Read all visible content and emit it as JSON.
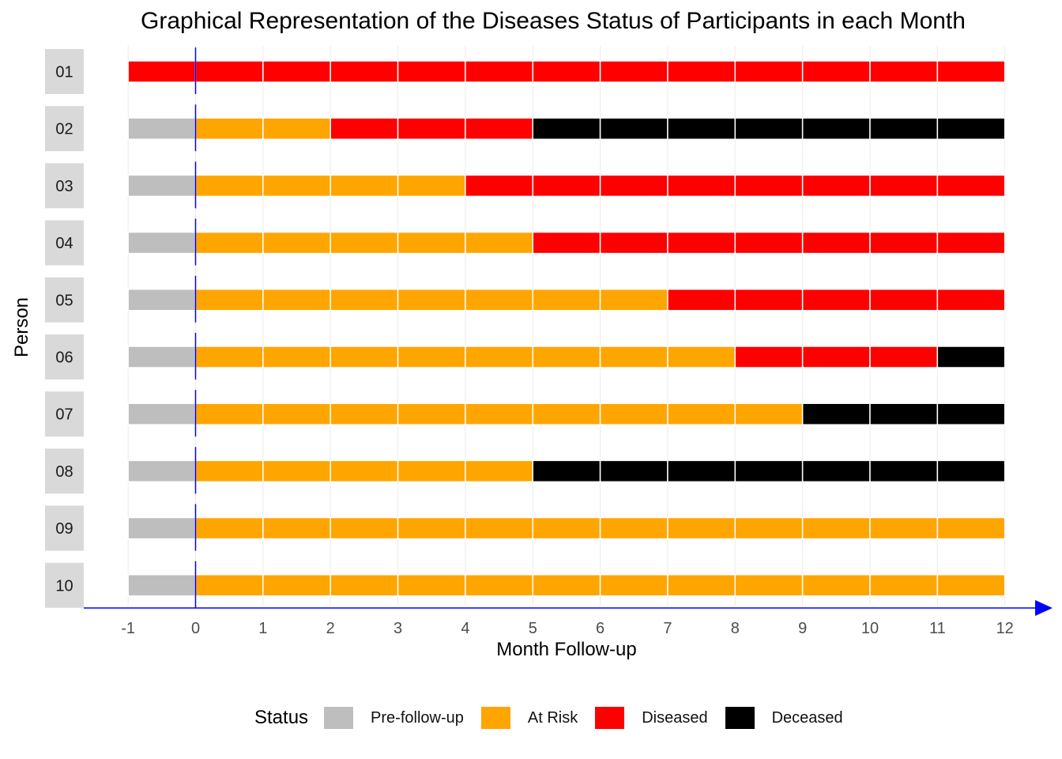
{
  "chart_data": {
    "type": "bar",
    "title": "Graphical Representation of the Diseases Status of Participants in each Month",
    "xlabel": "Month Follow-up",
    "ylabel": "Person",
    "xlim": [
      -1,
      12
    ],
    "x_ticks": [
      "-1",
      "0",
      "1",
      "2",
      "3",
      "4",
      "5",
      "6",
      "7",
      "8",
      "9",
      "10",
      "11",
      "12"
    ],
    "persons": [
      "01",
      "02",
      "03",
      "04",
      "05",
      "06",
      "07",
      "08",
      "09",
      "10"
    ],
    "legend_title": "Status",
    "legend_position": "bottom",
    "statuses": [
      {
        "key": "pre",
        "label": "Pre-follow-up",
        "color": "#BEBEBE"
      },
      {
        "key": "risk",
        "label": "At Risk",
        "color": "#FFA500"
      },
      {
        "key": "dis",
        "label": "Diseased",
        "color": "#FF0000"
      },
      {
        "key": "dec",
        "label": "Deceased",
        "color": "#000000"
      }
    ],
    "month_status": [
      [
        "dis",
        "dis",
        "dis",
        "dis",
        "dis",
        "dis",
        "dis",
        "dis",
        "dis",
        "dis",
        "dis",
        "dis",
        "dis"
      ],
      [
        "pre",
        "risk",
        "risk",
        "dis",
        "dis",
        "dis",
        "dec",
        "dec",
        "dec",
        "dec",
        "dec",
        "dec",
        "dec"
      ],
      [
        "pre",
        "risk",
        "risk",
        "risk",
        "risk",
        "dis",
        "dis",
        "dis",
        "dis",
        "dis",
        "dis",
        "dis",
        "dis"
      ],
      [
        "pre",
        "risk",
        "risk",
        "risk",
        "risk",
        "risk",
        "dis",
        "dis",
        "dis",
        "dis",
        "dis",
        "dis",
        "dis"
      ],
      [
        "pre",
        "risk",
        "risk",
        "risk",
        "risk",
        "risk",
        "risk",
        "risk",
        "dis",
        "dis",
        "dis",
        "dis",
        "dis"
      ],
      [
        "pre",
        "risk",
        "risk",
        "risk",
        "risk",
        "risk",
        "risk",
        "risk",
        "risk",
        "dis",
        "dis",
        "dis",
        "dec"
      ],
      [
        "pre",
        "risk",
        "risk",
        "risk",
        "risk",
        "risk",
        "risk",
        "risk",
        "risk",
        "risk",
        "dec",
        "dec",
        "dec"
      ],
      [
        "pre",
        "risk",
        "risk",
        "risk",
        "risk",
        "risk",
        "dec",
        "dec",
        "dec",
        "dec",
        "dec",
        "dec",
        "dec"
      ],
      [
        "pre",
        "risk",
        "risk",
        "risk",
        "risk",
        "risk",
        "risk",
        "risk",
        "risk",
        "risk",
        "risk",
        "risk",
        "risk"
      ],
      [
        "pre",
        "risk",
        "risk",
        "risk",
        "risk",
        "risk",
        "risk",
        "risk",
        "risk",
        "risk",
        "risk",
        "risk",
        "risk"
      ]
    ],
    "reference_line_x": 0,
    "accent_color": "#0000FF",
    "grid": true
  }
}
